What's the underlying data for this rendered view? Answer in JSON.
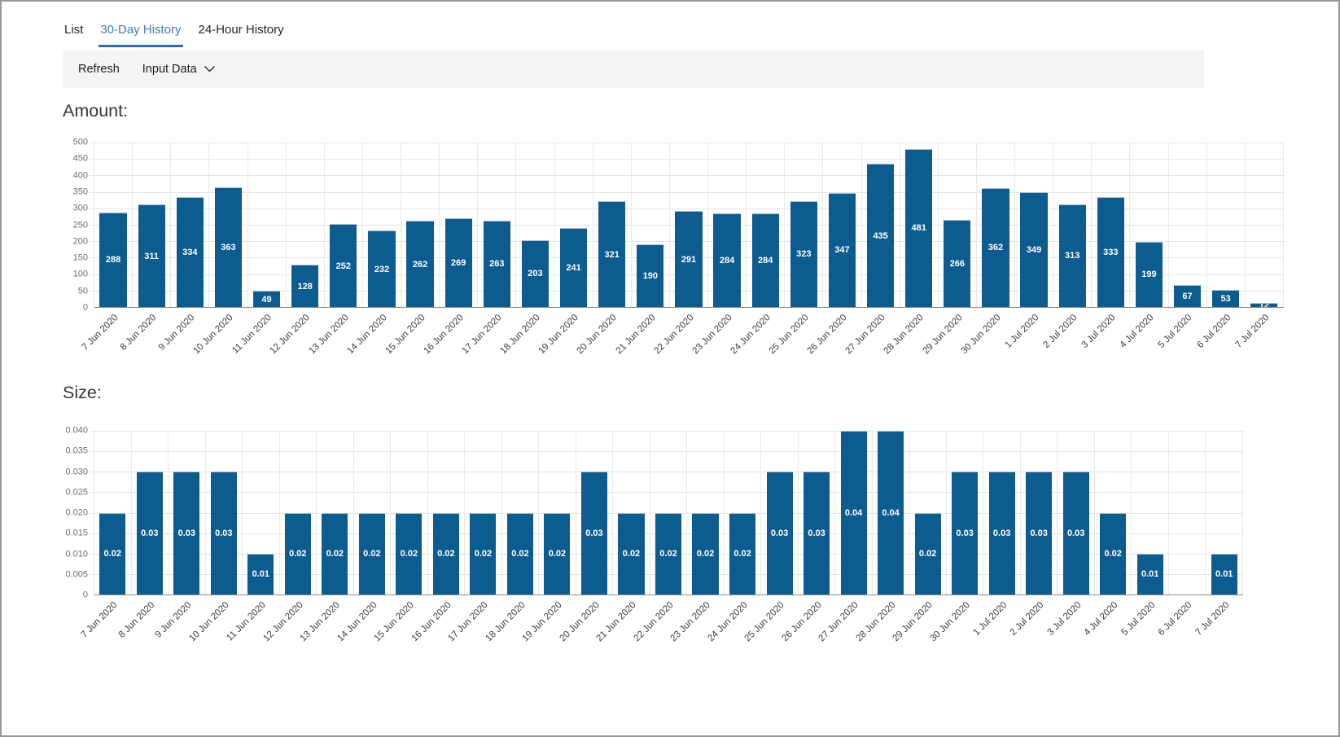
{
  "tabs": [
    {
      "label": "List",
      "active": false
    },
    {
      "label": "30-Day History",
      "active": true
    },
    {
      "label": "24-Hour History",
      "active": false
    }
  ],
  "toolbar": {
    "refresh_label": "Refresh",
    "input_data_label": "Input Data"
  },
  "theme": {
    "bar_color": "#0d5c90",
    "active_tab_color": "#3e7cc1",
    "tab_underline_color": "#2d6db6",
    "toolbar_bg": "#f4f4f4"
  },
  "chart_data": [
    {
      "type": "bar",
      "title": "Amount:",
      "categories": [
        "7 Jun 2020",
        "8 Jun 2020",
        "9 Jun 2020",
        "10 Jun 2020",
        "11 Jun 2020",
        "12 Jun 2020",
        "13 Jun 2020",
        "14 Jun 2020",
        "15 Jun 2020",
        "16 Jun 2020",
        "17 Jun 2020",
        "18 Jun 2020",
        "19 Jun 2020",
        "20 Jun 2020",
        "21 Jun 2020",
        "22 Jun 2020",
        "23 Jun 2020",
        "24 Jun 2020",
        "25 Jun 2020",
        "26 Jun 2020",
        "27 Jun 2020",
        "28 Jun 2020",
        "29 Jun 2020",
        "30 Jun 2020",
        "1 Jul 2020",
        "2 Jul 2020",
        "3 Jul 2020",
        "4 Jul 2020",
        "5 Jul 2020",
        "6 Jul 2020",
        "7 Jul 2020"
      ],
      "values": [
        288,
        311,
        334,
        363,
        49,
        128,
        252,
        232,
        262,
        269,
        263,
        203,
        241,
        321,
        190,
        291,
        284,
        284,
        323,
        347,
        435,
        481,
        266,
        362,
        349,
        313,
        333,
        199,
        67,
        53,
        12
      ],
      "labels": [
        "288",
        "311",
        "334",
        "363",
        "49",
        "128",
        "252",
        "232",
        "262",
        "269",
        "263",
        "203",
        "241",
        "321",
        "190",
        "291",
        "284",
        "284",
        "323",
        "347",
        "435",
        "481",
        "266",
        "362",
        "349",
        "313",
        "333",
        "199",
        "67",
        "53",
        "12"
      ],
      "xlabel": "",
      "ylabel": "",
      "ylim": [
        0,
        500
      ],
      "yticks": [
        "500",
        "450",
        "400",
        "350",
        "300",
        "250",
        "200",
        "150",
        "100",
        "50",
        "0"
      ],
      "grid": true,
      "legend": "none",
      "bar_color": "#0d5c90"
    },
    {
      "type": "bar",
      "title": "Size:",
      "categories": [
        "7 Jun 2020",
        "8 Jun 2020",
        "9 Jun 2020",
        "10 Jun 2020",
        "11 Jun 2020",
        "12 Jun 2020",
        "13 Jun 2020",
        "14 Jun 2020",
        "15 Jun 2020",
        "16 Jun 2020",
        "17 Jun 2020",
        "18 Jun 2020",
        "19 Jun 2020",
        "20 Jun 2020",
        "21 Jun 2020",
        "22 Jun 2020",
        "23 Jun 2020",
        "24 Jun 2020",
        "25 Jun 2020",
        "26 Jun 2020",
        "27 Jun 2020",
        "28 Jun 2020",
        "29 Jun 2020",
        "30 Jun 2020",
        "1 Jul 2020",
        "2 Jul 2020",
        "3 Jul 2020",
        "4 Jul 2020",
        "5 Jul 2020",
        "6 Jul 2020",
        "7 Jul 2020"
      ],
      "values": [
        0.02,
        0.03,
        0.03,
        0.03,
        0.01,
        0.02,
        0.02,
        0.02,
        0.02,
        0.02,
        0.02,
        0.02,
        0.02,
        0.03,
        0.02,
        0.02,
        0.02,
        0.02,
        0.03,
        0.03,
        0.04,
        0.04,
        0.02,
        0.03,
        0.03,
        0.03,
        0.03,
        0.02,
        0.01,
        0,
        0.01
      ],
      "labels": [
        "0.02",
        "0.03",
        "0.03",
        "0.03",
        "0.01",
        "0.02",
        "0.02",
        "0.02",
        "0.02",
        "0.02",
        "0.02",
        "0.02",
        "0.02",
        "0.03",
        "0.02",
        "0.02",
        "0.02",
        "0.02",
        "0.03",
        "0.03",
        "0.04",
        "0.04",
        "0.02",
        "0.03",
        "0.03",
        "0.03",
        "0.03",
        "0.02",
        "0.01",
        "",
        "0.01"
      ],
      "xlabel": "",
      "ylabel": "",
      "ylim": [
        0,
        0.04
      ],
      "yticks": [
        "0.040",
        "0.035",
        "0.030",
        "0.025",
        "0.020",
        "0.015",
        "0.010",
        "0.005",
        "0"
      ],
      "grid": true,
      "legend": "none",
      "bar_color": "#0d5c90"
    }
  ]
}
